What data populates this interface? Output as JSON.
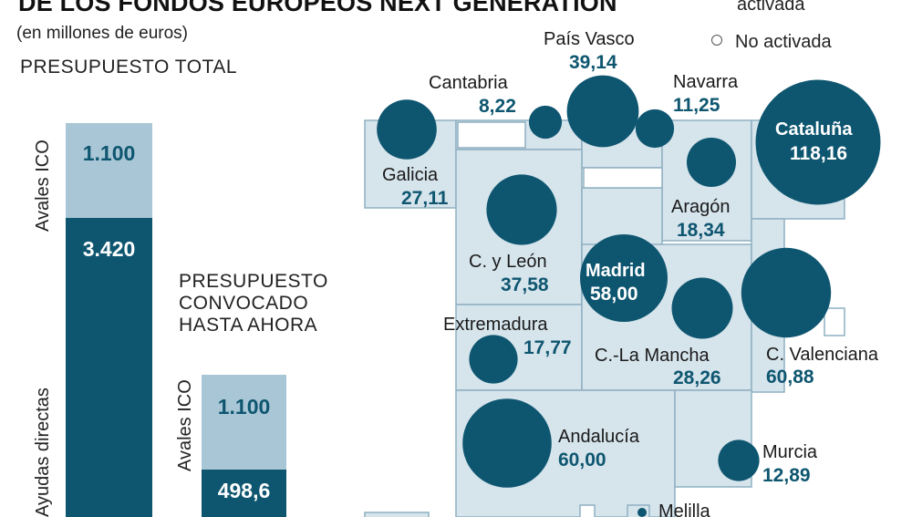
{
  "header": {
    "title": "DE LOS FONDOS EUROPEOS NEXT GENERATION",
    "subtitle": "(en millones de euros)"
  },
  "legend": {
    "activated_label": "activada",
    "not_activated_label": "No activada"
  },
  "colors": {
    "dark": "#0e5670",
    "light": "#a9c6d6",
    "region_fill": "#d6e4ec",
    "region_stroke": "#8fb0c2"
  },
  "chart_data": [
    {
      "type": "bar",
      "stacked": true,
      "unit": "millones de euros",
      "categories": [
        "PRESUPUESTO TOTAL",
        "PRESUPUESTO CONVOCADO HASTA AHORA"
      ],
      "series": [
        {
          "name": "Ayudas directas",
          "values": [
            3420,
            498.6
          ],
          "labels": [
            "3.420",
            "498,6"
          ]
        },
        {
          "name": "Avales ICO",
          "values": [
            1100,
            1100
          ],
          "labels": [
            "1.100",
            "1.100"
          ]
        }
      ]
    },
    {
      "type": "bubble-map",
      "unit": "millones de euros",
      "regions": [
        {
          "name": "País Vasco",
          "label": "39,14",
          "value": 39.14
        },
        {
          "name": "Cantabria",
          "label": "8,22",
          "value": 8.22
        },
        {
          "name": "Navarra",
          "label": "11,25",
          "value": 11.25
        },
        {
          "name": "Cataluña",
          "label": "118,16",
          "value": 118.16
        },
        {
          "name": "Galicia",
          "label": "27,11",
          "value": 27.11
        },
        {
          "name": "Aragón",
          "label": "18,34",
          "value": 18.34
        },
        {
          "name": "C. y León",
          "label": "37,58",
          "value": 37.58
        },
        {
          "name": "Madrid",
          "label": "58,00",
          "value": 58.0
        },
        {
          "name": "Extremadura",
          "label": "17,77",
          "value": 17.77
        },
        {
          "name": "C.-La Mancha",
          "label": "28,26",
          "value": 28.26
        },
        {
          "name": "C. Valenciana",
          "label": "60,88",
          "value": 60.88
        },
        {
          "name": "Andalucía",
          "label": "60,00",
          "value": 60.0
        },
        {
          "name": "Murcia",
          "label": "12,89",
          "value": 12.89
        },
        {
          "name": "Melilla",
          "label": "",
          "value": null
        }
      ]
    }
  ]
}
